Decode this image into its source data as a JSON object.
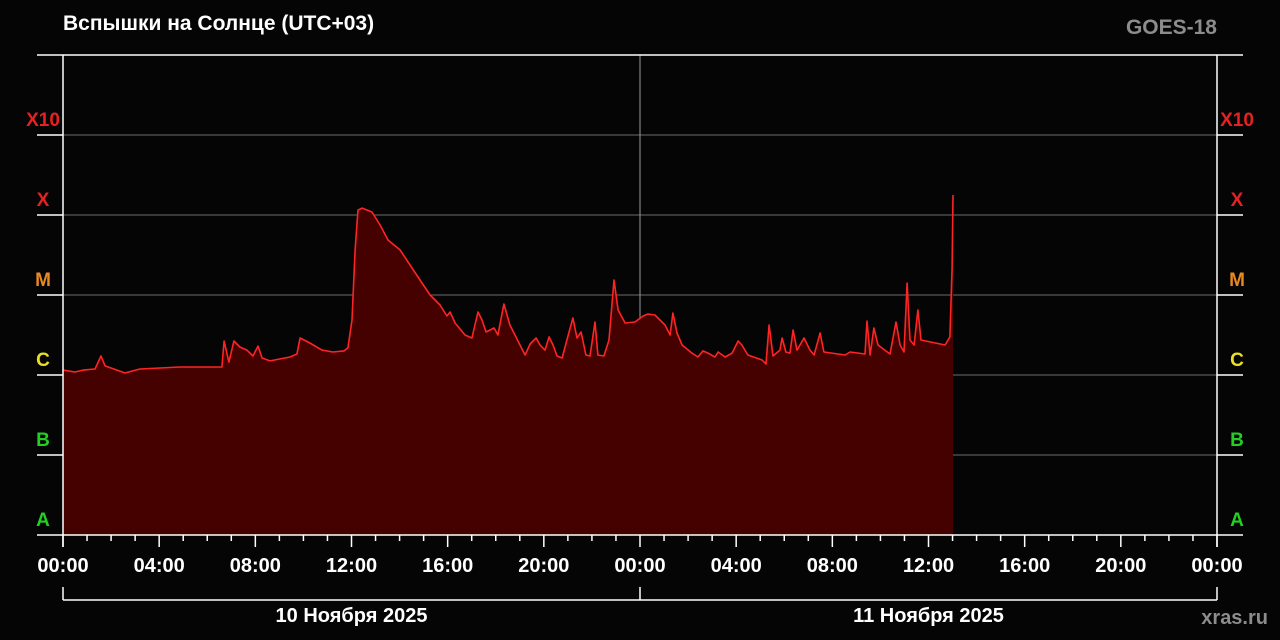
{
  "chart_data": {
    "type": "area",
    "title": "Вспышки на Солнце (UTC+03)",
    "satellite": "GOES-18",
    "watermark": "xras.ru",
    "scale": "log",
    "y_unit_note": "",
    "ylim": [
      1e-08,
      0.01
    ],
    "xlim_hours": [
      0,
      48
    ],
    "grid": true,
    "flare_classes": [
      {
        "label": "A",
        "flux": 1e-08,
        "color": "#22d022"
      },
      {
        "label": "B",
        "flux": 1e-07,
        "color": "#22d022"
      },
      {
        "label": "C",
        "flux": 1e-06,
        "color": "#e8e020"
      },
      {
        "label": "M",
        "flux": 1e-05,
        "color": "#e88a20"
      },
      {
        "label": "X",
        "flux": 0.0001,
        "color": "#e82020"
      },
      {
        "label": "X10",
        "flux": 0.001,
        "color": "#e82020"
      }
    ],
    "x_tick_labels": [
      "00:00",
      "04:00",
      "08:00",
      "12:00",
      "16:00",
      "20:00",
      "00:00",
      "04:00",
      "08:00",
      "12:00",
      "16:00",
      "20:00",
      "00:00"
    ],
    "day_labels": [
      "10 Ноября 2025",
      "11 Ноября 2025"
    ],
    "line_color": "#ff2424",
    "fill_color": "#450000",
    "series": [
      {
        "x_hours": [
          0,
          0.5,
          0.83,
          1.33,
          1.58,
          1.75,
          2.58,
          3.2,
          4.87,
          6.61,
          6.7,
          6.9,
          7.11,
          7.36,
          7.65,
          7.9,
          8.11,
          8.28,
          8.61,
          9.44,
          9.73,
          9.86,
          10.27,
          10.77,
          11.23,
          11.69,
          11.85,
          12.02,
          12.15,
          12.27,
          12.44,
          12.85,
          13.19,
          13.52,
          14.02,
          14.85,
          15.27,
          15.68,
          15.97,
          16.1,
          16.31,
          16.72,
          17.01,
          17.26,
          17.43,
          17.6,
          17.93,
          18.09,
          18.34,
          18.59,
          19.01,
          19.22,
          19.43,
          19.68,
          19.84,
          20.05,
          20.22,
          20.38,
          20.55,
          20.76,
          20.96,
          21.21,
          21.38,
          21.55,
          21.75,
          21.92,
          22.13,
          22.25,
          22.5,
          22.71,
          22.92,
          23.09,
          23.38,
          23.79,
          24.13,
          24.33,
          24.62,
          25.04,
          25.25,
          25.37,
          25.54,
          25.75,
          26.16,
          26.41,
          26.62,
          26.83,
          27.12,
          27.25,
          27.54,
          27.83,
          28.08,
          28.24,
          28.49,
          29.08,
          29.24,
          29.37,
          29.53,
          29.82,
          29.91,
          30.07,
          30.24,
          30.37,
          30.53,
          30.82,
          31.07,
          31.24,
          31.49,
          31.65,
          32.53,
          32.74,
          33.36,
          33.44,
          33.57,
          33.73,
          33.9,
          34.4,
          34.65,
          34.82,
          34.98,
          35.11,
          35.23,
          35.4,
          35.56,
          35.69,
          36.06,
          36.69,
          36.89,
          36.98,
          37.02
        ],
        "flux": [
          1.15e-06,
          1.09e-06,
          1.15e-06,
          1.19e-06,
          1.73e-06,
          1.3e-06,
          1.06e-06,
          1.19e-06,
          1.26e-06,
          1.26e-06,
          2.66e-06,
          1.45e-06,
          2.66e-06,
          2.24e-06,
          2.05e-06,
          1.73e-06,
          2.3e-06,
          1.63e-06,
          1.5e-06,
          1.68e-06,
          1.83e-06,
          2.9e-06,
          2.51e-06,
          2.05e-06,
          1.94e-06,
          2e-06,
          2.18e-06,
          4.87e-06,
          3.65e-05,
          0.000115,
          0.000122,
          0.000109,
          7.5e-05,
          4.87e-05,
          3.65e-05,
          1.54e-05,
          1e-05,
          7.5e-06,
          5.46e-06,
          6.13e-06,
          4.47e-06,
          3.16e-06,
          2.9e-06,
          6.13e-06,
          4.87e-06,
          3.45e-06,
          3.87e-06,
          3.16e-06,
          7.72e-06,
          4.22e-06,
          2.37e-06,
          1.78e-06,
          2.44e-06,
          2.9e-06,
          2.37e-06,
          2.05e-06,
          2.99e-06,
          2.37e-06,
          1.73e-06,
          1.63e-06,
          2.74e-06,
          5.16e-06,
          2.9e-06,
          3.45e-06,
          1.78e-06,
          1.73e-06,
          4.6e-06,
          1.78e-06,
          1.73e-06,
          2.74e-06,
          1.54e-05,
          6.49e-06,
          4.47e-06,
          4.6e-06,
          5.46e-06,
          5.79e-06,
          5.62e-06,
          4.22e-06,
          3.16e-06,
          5.96e-06,
          3.35e-06,
          2.37e-06,
          1.88e-06,
          1.68e-06,
          2e-06,
          1.88e-06,
          1.68e-06,
          1.94e-06,
          1.68e-06,
          1.88e-06,
          2.66e-06,
          2.37e-06,
          1.78e-06,
          1.54e-06,
          1.37e-06,
          4.22e-06,
          1.73e-06,
          2.05e-06,
          2.9e-06,
          1.94e-06,
          1.88e-06,
          3.65e-06,
          2.05e-06,
          2.9e-06,
          2.05e-06,
          1.78e-06,
          3.35e-06,
          1.94e-06,
          1.78e-06,
          1.94e-06,
          1.83e-06,
          4.73e-06,
          1.78e-06,
          3.87e-06,
          2.37e-06,
          1.83e-06,
          4.6e-06,
          2.37e-06,
          1.94e-06,
          1.41e-05,
          2.74e-06,
          2.37e-06,
          6.49e-06,
          2.74e-06,
          2.59e-06,
          2.37e-06,
          2.99e-06,
          2.18e-05,
          0.000178
        ]
      }
    ]
  }
}
